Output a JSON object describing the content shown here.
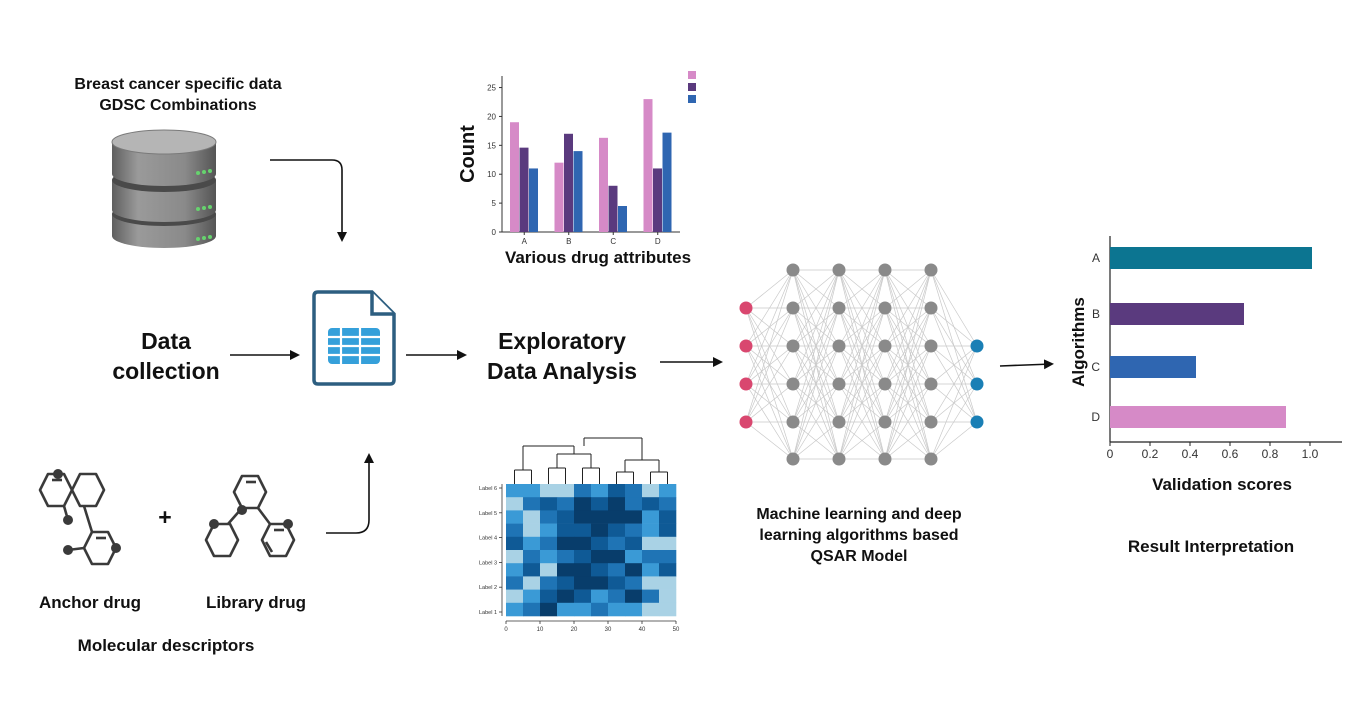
{
  "source": {
    "title_line1": "Breast cancer specific data",
    "title_line2": "GDSC Combinations"
  },
  "stages": {
    "data_collection": {
      "line1": "Data",
      "line2": "collection"
    },
    "eda": {
      "line1": "Exploratory",
      "line2": "Data Analysis"
    },
    "ml": {
      "line1": "Machine learning and deep",
      "line2": "learning algorithms based",
      "line3": "QSAR Model"
    },
    "result": "Result Interpretation"
  },
  "molecules": {
    "anchor": "Anchor drug",
    "library": "Library drug",
    "plus": "+",
    "descriptors": "Molecular descriptors"
  },
  "bar_chart": {
    "type": "bar",
    "ylabel": "Count",
    "xlabel": "Various drug attributes",
    "categories": [
      "A",
      "B",
      "C",
      "D"
    ],
    "yticks": [
      "0",
      "5",
      "10",
      "15",
      "20",
      "25"
    ],
    "ylim": [
      0,
      27
    ],
    "series": [
      {
        "values": [
          19,
          12,
          16.3,
          23
        ],
        "color": "#d68ac7"
      },
      {
        "values": [
          14.6,
          17,
          8,
          11
        ],
        "color": "#5a3a7e"
      },
      {
        "values": [
          11,
          14,
          4.5,
          17.2
        ],
        "color": "#2f66b1"
      }
    ]
  },
  "heatmap": {
    "row_labels": [
      "Label 6",
      "Label 5",
      "Label 4",
      "Label 3",
      "Label 2",
      "Label 1"
    ],
    "x_ticks": [
      "0",
      "10",
      "20",
      "30",
      "40",
      "50"
    ],
    "palette": [
      "#a9d2e5",
      "#3a9ad6",
      "#1f74b5",
      "#0f5a96",
      "#083d6b"
    ],
    "grid": [
      [
        1,
        1,
        0,
        0,
        2,
        1,
        3,
        2,
        0,
        1
      ],
      [
        0,
        2,
        3,
        2,
        4,
        3,
        4,
        2,
        3,
        2
      ],
      [
        1,
        0,
        2,
        3,
        4,
        4,
        4,
        4,
        1,
        3
      ],
      [
        2,
        0,
        1,
        3,
        3,
        4,
        3,
        2,
        1,
        3
      ],
      [
        3,
        1,
        2,
        4,
        4,
        3,
        2,
        3,
        0,
        0
      ],
      [
        0,
        2,
        1,
        2,
        3,
        4,
        4,
        1,
        2,
        2
      ],
      [
        1,
        3,
        0,
        4,
        4,
        3,
        2,
        4,
        1,
        3
      ],
      [
        2,
        0,
        2,
        3,
        4,
        4,
        3,
        2,
        0,
        0
      ],
      [
        0,
        1,
        3,
        4,
        3,
        1,
        2,
        4,
        2,
        0
      ],
      [
        1,
        2,
        4,
        1,
        1,
        2,
        1,
        1,
        0,
        0
      ]
    ]
  },
  "network": {
    "input_color": "#d9476f",
    "hidden_color": "#8a8a8a",
    "output_color": "#1a7fb5",
    "layers": [
      4,
      6,
      6,
      6,
      6,
      3
    ]
  },
  "hbar_chart": {
    "type": "bar",
    "orientation": "horizontal",
    "ylabel": "Algorithms",
    "xlabel": "Validation scores",
    "categories": [
      "A",
      "B",
      "C",
      "D"
    ],
    "values": [
      1.01,
      0.67,
      0.43,
      0.88
    ],
    "colors": [
      "#0c7591",
      "#5a3a7e",
      "#2f66b1",
      "#d68ac7"
    ],
    "xticks": [
      "0",
      "0.2",
      "0.4",
      "0.6",
      "0.8",
      "1.0"
    ],
    "xlim": [
      0,
      1.16
    ]
  }
}
